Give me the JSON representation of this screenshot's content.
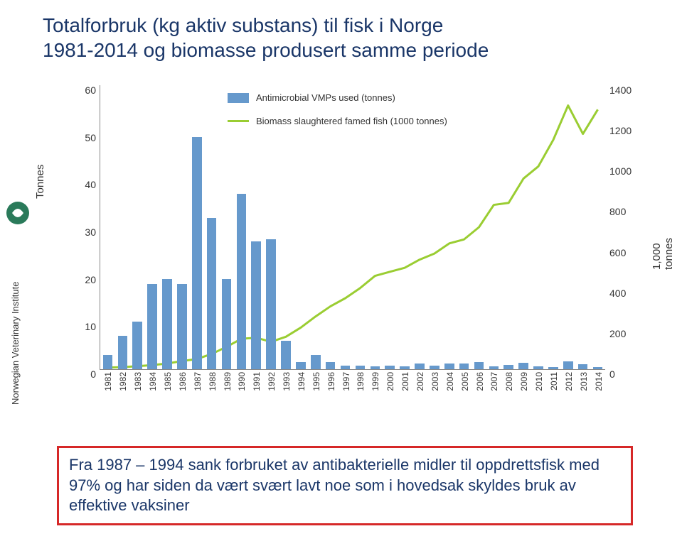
{
  "title_line1": "Totalforbruk (kg aktiv substans) til fisk i Norge",
  "title_line2": "1981-2014 og biomasse produsert samme periode",
  "left_axis_title": "Tonnes",
  "right_axis_title": "1,000 tonnes",
  "legend_bar": "Antimicrobial VMPs used (tonnes)",
  "legend_line": "Biomass slaughtered famed fish (1000 tonnes)",
  "callout_text": "Fra 1987 – 1994 sank forbruket av antibakterielle midler til oppdrettsfisk med 97% og har siden da vært svært lavt noe som i hovedsak skyldes bruk av effektive vaksiner",
  "logo_text": "Norwegian Veterinary Institute",
  "chart": {
    "type": "bar+line",
    "years": [
      "1981",
      "1982",
      "1983",
      "1984",
      "1985",
      "1986",
      "1987",
      "1988",
      "1989",
      "1990",
      "1991",
      "1992",
      "1993",
      "1994",
      "1995",
      "1996",
      "1997",
      "1998",
      "1999",
      "2000",
      "2001",
      "2002",
      "2003",
      "2004",
      "2005",
      "2006",
      "2007",
      "2008",
      "2009",
      "2010",
      "2011",
      "2012",
      "2013",
      "2014"
    ],
    "bars": [
      3,
      7,
      10,
      18,
      19,
      18,
      49,
      32,
      19,
      37,
      27,
      27.5,
      6,
      1.5,
      3,
      1.5,
      0.7,
      0.7,
      0.6,
      0.7,
      0.6,
      1.2,
      0.8,
      1.2,
      1.2,
      1.5,
      0.6,
      0.9,
      1.3,
      0.6,
      0.5,
      1.6,
      1,
      0.5
    ],
    "line": [
      8,
      10,
      15,
      20,
      28,
      40,
      50,
      75,
      110,
      150,
      155,
      135,
      160,
      205,
      260,
      310,
      350,
      400,
      460,
      480,
      500,
      540,
      570,
      620,
      640,
      700,
      810,
      820,
      940,
      1000,
      1130,
      1300,
      1160,
      1280
    ],
    "y_left_max": 60,
    "y_left_ticks": [
      0,
      10,
      20,
      30,
      40,
      50,
      60
    ],
    "y_right_max": 1400,
    "y_right_ticks": [
      0,
      200,
      400,
      600,
      800,
      1000,
      1200,
      1400
    ],
    "bar_color": "#6699cc",
    "line_color": "#9acd32",
    "line_width": 3,
    "background_color": "#ffffff",
    "title_color": "#1a3668",
    "callout_border": "#d62828",
    "axis_color": "#888888",
    "axis_fontsize": 14,
    "xlabel_fontsize": 12,
    "title_fontsize": 28,
    "callout_fontsize": 22,
    "bar_width_ratio": 0.65
  }
}
